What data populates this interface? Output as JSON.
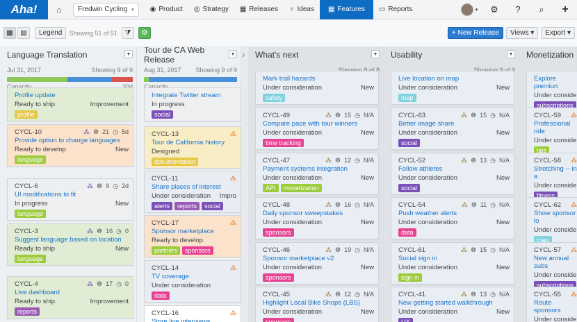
{
  "nav": {
    "logo": "Aha!",
    "workspace": "Fredwin Cycling",
    "items": [
      {
        "label": "Product",
        "icon": "◉"
      },
      {
        "label": "Strategy",
        "icon": "◎"
      },
      {
        "label": "Releases",
        "icon": "▦"
      },
      {
        "label": "Ideas",
        "icon": "♀"
      },
      {
        "label": "Features",
        "icon": "▦"
      },
      {
        "label": "Reports",
        "icon": "▭"
      }
    ]
  },
  "toolbar": {
    "legend": "Legend",
    "showing": "Showing 51 of 51",
    "new_release": "+ New Release",
    "views": "Views ▾",
    "export": "Export ▾"
  },
  "colors": {
    "ship": "#e0ecd4",
    "develop": "#fbe2cb",
    "progress": "#eeeff1",
    "design": "#f9edc6",
    "consider": "#e8edf3"
  },
  "columns": [
    {
      "name": "Language Translation",
      "date": "Jul 31, 2017",
      "showing": "Showing 9 of 9",
      "cap": "Capacity",
      "cap_val": "30d"
    },
    {
      "name": "Tour de CA Web Release",
      "date": "Aug 31, 2017",
      "showing": "Showing 9 of 9",
      "cap": "Capacity"
    },
    {
      "name": "What's next",
      "showing": "Showing 8 of 8"
    },
    {
      "name": "Usability",
      "showing": "Showing 9 of 9"
    },
    {
      "name": "Monetization"
    }
  ],
  "cards": {
    "c0": [
      {
        "id": "",
        "title": "Profile update",
        "status": "Ready to ship",
        "type": "Improvement",
        "tags": [
          {
            "t": "profile",
            "c": "#e6c84a"
          }
        ]
      },
      {
        "id": "CYCL-10",
        "count": "21",
        "time": "5d",
        "title": "Provide option to change languages",
        "status": "Ready to develop",
        "type": "New",
        "tags": [
          {
            "t": "language",
            "c": "#9ccc3c"
          }
        ]
      },
      {
        "id": "CYCL-6",
        "count": "9",
        "time": "2d",
        "title": "UI modifications to fit",
        "status": "In progress",
        "type": "New",
        "tags": [
          {
            "t": "language",
            "c": "#9ccc3c"
          }
        ]
      },
      {
        "id": "CYCL-3",
        "count": "16",
        "time": "0",
        "title": "Suggest language based on location",
        "status": "Ready to ship",
        "type": "New",
        "tags": [
          {
            "t": "language",
            "c": "#9ccc3c"
          }
        ]
      },
      {
        "id": "CYCL-4",
        "count": "17",
        "time": "0",
        "title": "Live dashboard",
        "status": "Ready to ship",
        "type": "Improvement",
        "tags": [
          {
            "t": "reports",
            "c": "#9b59b6"
          }
        ]
      }
    ],
    "c1": [
      {
        "id": "",
        "title": "Integrate Twitter stream",
        "status": "In progress",
        "tags": [
          {
            "t": "social",
            "c": "#7b4fb8"
          }
        ]
      },
      {
        "id": "CYCL-13",
        "title": "Tour de California history",
        "status": "Designed",
        "tags": [
          {
            "t": "documentation",
            "c": "#e6c84a"
          }
        ]
      },
      {
        "id": "CYCL-11",
        "title": "Share places of interest",
        "status": "Under consideration",
        "type": "Impro",
        "tags": [
          {
            "t": "alerts",
            "c": "#7b4fb8"
          },
          {
            "t": "reports",
            "c": "#9b59b6"
          },
          {
            "t": "social",
            "c": "#7b4fb8"
          }
        ]
      },
      {
        "id": "CYCL-17",
        "title": "Sponsor marketplace",
        "status": "Ready to develop",
        "tags": [
          {
            "t": "partners",
            "c": "#9ccc3c"
          },
          {
            "t": "sponsors",
            "c": "#e84393"
          }
        ]
      },
      {
        "id": "CYCL-14",
        "title": "TV coverage",
        "status": "Under consideration",
        "tags": [
          {
            "t": "data",
            "c": "#e84393"
          }
        ]
      },
      {
        "id": "CYCL-16",
        "title": "Store live interviews",
        "status": "",
        "tags": []
      }
    ],
    "c2": [
      {
        "id": "",
        "title": "Mark trail hazards",
        "status": "Under consideration",
        "type": "New",
        "tags": [
          {
            "t": "safety",
            "c": "#7fd3e0"
          }
        ]
      },
      {
        "id": "CYCL-49",
        "count": "15",
        "time": "N/A",
        "title": "Compare pace with tour winners",
        "status": "Under consideration",
        "type": "New",
        "tags": [
          {
            "t": "time tracking",
            "c": "#e84393"
          }
        ]
      },
      {
        "id": "CYCL-47",
        "count": "12",
        "time": "N/A",
        "title": "Payment systems integration",
        "status": "Under consideration",
        "type": "New",
        "tags": [
          {
            "t": "API",
            "c": "#9ccc3c"
          },
          {
            "t": "monetization",
            "c": "#9ccc3c"
          }
        ]
      },
      {
        "id": "CYCL-48",
        "count": "16",
        "time": "N/A",
        "title": "Daily sponsor sweepstakes",
        "status": "Under consideration",
        "type": "New",
        "tags": [
          {
            "t": "sponsors",
            "c": "#e84393"
          }
        ]
      },
      {
        "id": "CYCL-46",
        "count": "19",
        "time": "N/A",
        "title": "Sponsor marketplace v2",
        "status": "Under consideration",
        "type": "New",
        "tags": [
          {
            "t": "sponsors",
            "c": "#e84393"
          }
        ]
      },
      {
        "id": "CYCL-45",
        "count": "12",
        "time": "N/A",
        "title": "Highlight Local Bike Shops (LBS)",
        "status": "Under consideration",
        "type": "New",
        "tags": [
          {
            "t": "sponsors",
            "c": "#e84393"
          }
        ]
      }
    ],
    "c3": [
      {
        "id": "",
        "title": "Live location on map",
        "status": "Under consideration",
        "type": "New",
        "tags": [
          {
            "t": "map",
            "c": "#7fd3e0"
          }
        ]
      },
      {
        "id": "CYCL-63",
        "count": "15",
        "time": "N/A",
        "title": "Better image share",
        "status": "Under consideration",
        "type": "New",
        "tags": [
          {
            "t": "social",
            "c": "#7b4fb8"
          }
        ]
      },
      {
        "id": "CYCL-52",
        "count": "13",
        "time": "N/A",
        "title": "Follow athletes",
        "status": "Under consideration",
        "type": "New",
        "tags": [
          {
            "t": "social",
            "c": "#7b4fb8"
          }
        ]
      },
      {
        "id": "CYCL-54",
        "count": "11",
        "time": "N/A",
        "title": "Push weather alerts",
        "status": "Under consideration",
        "type": "New",
        "tags": [
          {
            "t": "data",
            "c": "#e84393"
          }
        ]
      },
      {
        "id": "CYCL-61",
        "count": "15",
        "time": "N/A",
        "title": "Social sign in",
        "status": "Under consideration",
        "type": "New",
        "tags": [
          {
            "t": "sign in",
            "c": "#9ccc3c"
          }
        ]
      },
      {
        "id": "CYCL-41",
        "count": "13",
        "time": "N/A",
        "title": "New getting started walkthrough",
        "status": "Under consideration",
        "type": "New",
        "tags": [
          {
            "t": "UX",
            "c": "#7b4fb8"
          }
        ]
      }
    ],
    "c4": [
      {
        "id": "",
        "title": "Explore premiun",
        "status": "Under conside",
        "tags": [
          {
            "t": "subscriptions",
            "c": "#7b4fb8"
          }
        ]
      },
      {
        "id": "CYCL-59",
        "title": "Professional ride",
        "status": "Under conside",
        "tags": [
          {
            "t": "tips",
            "c": "#9ccc3c"
          }
        ]
      },
      {
        "id": "CYCL-58",
        "title": "Stretching -- in a",
        "status": "Under conside",
        "tags": [
          {
            "t": "fitness",
            "c": "#7b4fb8"
          }
        ]
      },
      {
        "id": "CYCL-62",
        "title": "Show sponsor lo",
        "status": "Under conside",
        "tags": [
          {
            "t": "map",
            "c": "#7fd3e0"
          }
        ]
      },
      {
        "id": "CYCL-57",
        "title": "New annual subs",
        "status": "Under conside",
        "tags": [
          {
            "t": "subscriptions",
            "c": "#7b4fb8"
          }
        ]
      },
      {
        "id": "CYCL-55",
        "title": "Route sponsors",
        "status": "Under conside",
        "tags": [
          {
            "t": "sponsors",
            "c": "#e84393"
          }
        ]
      }
    ]
  }
}
